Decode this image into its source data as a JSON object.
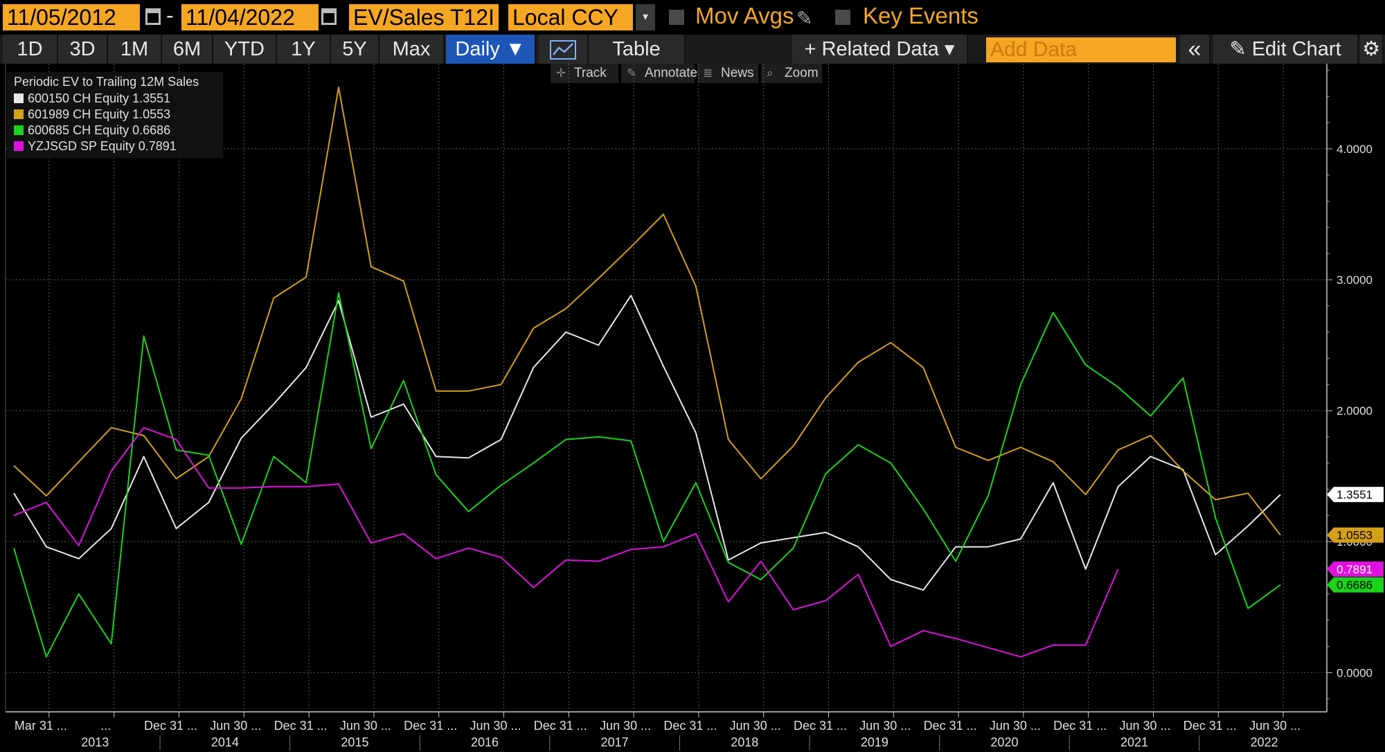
{
  "toolbar": {
    "start_date": "11/05/2012",
    "end_date": "11/04/2022",
    "dash": "-",
    "field": "EV/Sales T12I",
    "currency": "Local CCY",
    "dropdown_arrow": "▾",
    "mov_avgs": "Mov Avgs",
    "key_events": "Key Events"
  },
  "periods": [
    "1D",
    "3D",
    "1M",
    "6M",
    "YTD",
    "1Y",
    "5Y",
    "Max"
  ],
  "view": {
    "frequency": "Daily ▼",
    "table": "Table",
    "related_data": "+ Related Data ▾",
    "add_data_placeholder": "Add Data",
    "collapse": "«",
    "edit_chart": "✎ Edit Chart",
    "settings": "⚙"
  },
  "tools": {
    "track": "Track",
    "annotate": "Annotate",
    "news": "News",
    "zoom": "Zoom"
  },
  "legend": {
    "title": "Periodic EV to Trailing 12M Sales",
    "entries": [
      {
        "name": "600150 CH Equity",
        "value": "1.3551"
      },
      {
        "name": "601989 CH Equity",
        "value": "1.0553"
      },
      {
        "name": "600685 CH Equity",
        "value": "0.6686"
      },
      {
        "name": "YZJSGD SP Equity",
        "value": "0.7891"
      }
    ]
  },
  "chart_data": {
    "type": "line",
    "title": "Periodic EV to Trailing 12M Sales",
    "ylim": [
      -0.3,
      4.65
    ],
    "yticks": [
      "0.0000",
      "1.0000",
      "2.0000",
      "3.0000",
      "4.0000"
    ],
    "ytick_values": [
      0,
      1,
      2,
      3,
      4
    ],
    "grid": true,
    "legend_placement": "top-left",
    "x_tick_labels": [
      "Mar 31 ...",
      "...",
      "Dec 31 ...",
      "Jun 30 ...",
      "Dec 31 ...",
      "Jun 30 ...",
      "Dec 31 ...",
      "Jun 30 ...",
      "Dec 31 ...",
      "Jun 30 ...",
      "Dec 31 ...",
      "Jun 30 ...",
      "Dec 31 ...",
      "Jun 30 ...",
      "Dec 31 ...",
      "Jun 30 ...",
      "Dec 31 ...",
      "Jun 30 ...",
      "Dec 31 ...",
      "Jun 30 ..."
    ],
    "years": [
      "2013",
      "2014",
      "2015",
      "2016",
      "2017",
      "2018",
      "2019",
      "2020",
      "2021",
      "2022"
    ],
    "x": [
      "2012-12-31",
      "2013-03-31",
      "2013-06-30",
      "2013-09-30",
      "2013-12-31",
      "2014-03-31",
      "2014-06-30",
      "2014-09-30",
      "2014-12-31",
      "2015-03-31",
      "2015-06-30",
      "2015-09-30",
      "2015-12-31",
      "2016-03-31",
      "2016-06-30",
      "2016-09-30",
      "2016-12-31",
      "2017-03-31",
      "2017-06-30",
      "2017-09-30",
      "2017-12-31",
      "2018-03-31",
      "2018-06-30",
      "2018-09-30",
      "2018-12-31",
      "2019-03-31",
      "2019-06-30",
      "2019-09-30",
      "2019-12-31",
      "2020-03-31",
      "2020-06-30",
      "2020-09-30",
      "2020-12-31",
      "2021-03-31",
      "2021-06-30",
      "2021-09-30",
      "2021-12-31",
      "2022-03-31",
      "2022-06-30",
      "2022-09-30"
    ],
    "series": [
      {
        "name": "600150 CH Equity",
        "color": "#e8e8e8",
        "last_label": "1.3551",
        "values": [
          1.37,
          0.96,
          0.87,
          1.1,
          1.65,
          1.1,
          1.3,
          1.79,
          2.05,
          2.33,
          2.84,
          1.95,
          2.05,
          1.65,
          1.64,
          1.78,
          2.33,
          2.6,
          2.5,
          2.88,
          2.34,
          1.83,
          0.86,
          0.99,
          1.03,
          1.07,
          0.96,
          0.71,
          0.63,
          0.96,
          0.96,
          1.02,
          1.45,
          0.79,
          1.42,
          1.65,
          1.55,
          0.9,
          1.12,
          1.36
        ]
      },
      {
        "name": "601989 CH Equity",
        "color": "#d4a017",
        "last_label": "1.0553",
        "values": [
          1.58,
          1.35,
          1.61,
          1.87,
          1.81,
          1.48,
          1.65,
          2.09,
          2.86,
          3.02,
          4.47,
          3.1,
          2.99,
          2.15,
          2.15,
          2.2,
          2.63,
          2.78,
          3.01,
          3.25,
          3.5,
          2.95,
          1.78,
          1.48,
          1.73,
          2.1,
          2.37,
          2.52,
          2.33,
          1.72,
          1.62,
          1.72,
          1.61,
          1.36,
          1.7,
          1.81,
          1.54,
          1.32,
          1.37,
          1.05
        ]
      },
      {
        "name": "600685 CH Equity",
        "color": "#19d419",
        "last_label": "0.6686",
        "values": [
          0.95,
          0.12,
          0.6,
          0.22,
          2.57,
          1.7,
          1.66,
          0.98,
          1.65,
          1.45,
          2.9,
          1.71,
          2.23,
          1.51,
          1.23,
          1.43,
          1.6,
          1.78,
          1.8,
          1.77,
          1.0,
          1.45,
          0.84,
          0.71,
          0.95,
          1.52,
          1.74,
          1.6,
          1.25,
          0.85,
          1.35,
          2.2,
          2.75,
          2.35,
          2.18,
          1.96,
          2.25,
          1.18,
          0.49,
          0.67
        ]
      },
      {
        "name": "YZJSGD SP Equity",
        "color": "#e010e0",
        "last_label": "0.7891",
        "values": [
          1.2,
          1.3,
          0.97,
          1.54,
          1.87,
          1.78,
          1.41,
          1.41,
          1.42,
          1.42,
          1.44,
          0.99,
          1.06,
          0.87,
          0.95,
          0.88,
          0.65,
          0.86,
          0.85,
          0.94,
          0.96,
          1.06,
          0.54,
          0.85,
          0.48,
          0.55,
          0.75,
          0.2,
          0.32,
          0.26,
          0.19,
          0.12,
          0.21,
          0.21,
          0.79,
          null,
          null,
          null,
          null,
          null
        ]
      }
    ]
  }
}
